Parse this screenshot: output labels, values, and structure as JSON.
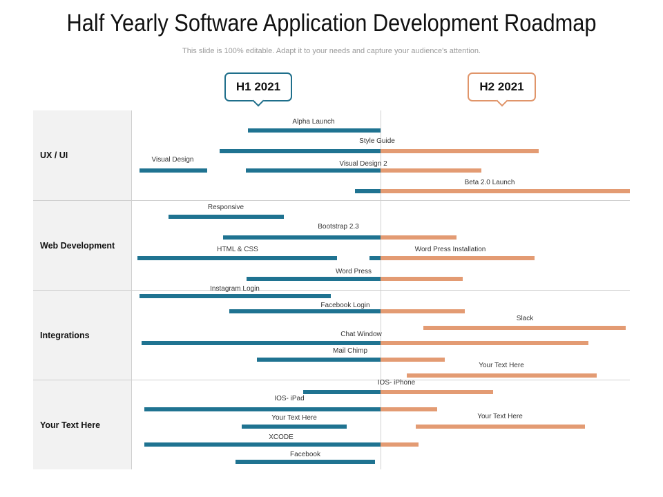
{
  "title": "Half Yearly Software Application Development Roadmap",
  "subtitle": "This slide is 100% editable. Adapt it to your needs and capture your audience's attention.",
  "periods": [
    {
      "label": "H1 2021",
      "color": "#1f6f8b"
    },
    {
      "label": "H2 2021",
      "color": "#e0956a"
    }
  ],
  "categories": [
    {
      "label": "UX / UI"
    },
    {
      "label": "Web Development"
    },
    {
      "label": "Integrations"
    },
    {
      "label": "Your Text Here"
    }
  ],
  "colors": {
    "h1": "#1f7391",
    "h2": "#e39b73",
    "row_bg": "#f2f2f2",
    "grid": "#cfcfcf"
  },
  "tasks": [
    {
      "label": "Alpha Launch"
    },
    {
      "label": "Style Guide"
    },
    {
      "label": "Visual Design"
    },
    {
      "label": "Visual Design 2"
    },
    {
      "label": "Beta 2.0 Launch"
    },
    {
      "label": "Responsive"
    },
    {
      "label": "Bootstrap 2.3"
    },
    {
      "label": "HTML & CSS"
    },
    {
      "label": "Word Press Installation"
    },
    {
      "label": "Word Press"
    },
    {
      "label": "Instagram Login"
    },
    {
      "label": "Facebook Login"
    },
    {
      "label": "Slack"
    },
    {
      "label": "Chat Window"
    },
    {
      "label": "Mail Chimp"
    },
    {
      "label": "Your Text Here"
    },
    {
      "label": "IOS- iPhone"
    },
    {
      "label": "IOS- iPad"
    },
    {
      "label": "Your Text Here"
    },
    {
      "label": "Your Text Here"
    },
    {
      "label": "XCODE"
    },
    {
      "label": "Facebook"
    }
  ]
}
